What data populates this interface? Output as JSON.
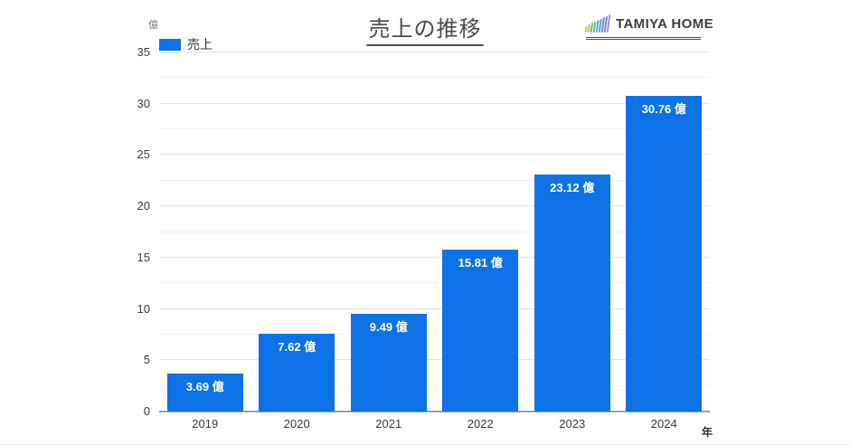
{
  "logo": {
    "text": "TAMIYA HOME",
    "icon": "chart-bars-icon",
    "icon_colors": [
      "#d9c83f",
      "#a8c94b",
      "#6fc266",
      "#4fbc8d",
      "#52a8dc",
      "#5b9bd5",
      "#7288cf",
      "#8c7cd0",
      "#a98fdf"
    ],
    "icon_bar_heights": [
      7,
      9,
      11,
      12,
      14,
      15,
      17,
      18,
      20
    ]
  },
  "colors": {
    "series_blue": "#0b72e7",
    "title_text": "#4a4a4a",
    "axis_line": "#9aa0a6",
    "gridline_major": "#e1e3e6",
    "gridline_minor": "#eff1f3",
    "bar_label_text": "#ffffff"
  },
  "chart_data": {
    "type": "bar",
    "title": "売上の推移",
    "unit_label": "億",
    "x_axis_label": "年",
    "categories": [
      "2019",
      "2020",
      "2021",
      "2022",
      "2023",
      "2024"
    ],
    "series": [
      {
        "name": "売上",
        "color": "#0b72e7",
        "values": [
          3.69,
          7.62,
          9.49,
          15.81,
          23.12,
          30.76
        ],
        "data_labels": [
          "3.69 億",
          "7.62 億",
          "9.49 億",
          "15.81 億",
          "23.12 億",
          "30.76 億"
        ]
      }
    ],
    "ylim": [
      0,
      35
    ],
    "yticks": [
      0,
      5,
      10,
      15,
      20,
      25,
      30,
      35
    ],
    "minor_grid_step": 2.5,
    "grid": true,
    "legend_position": "top-left"
  }
}
